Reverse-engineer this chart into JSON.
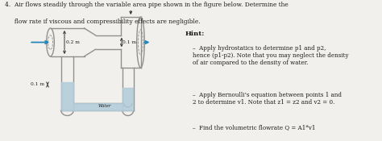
{
  "bg_color": "#f2f0ec",
  "title_line1": "4.  Air flows steadily through the variable area pipe shown in the figure below. Determine the",
  "title_line2": "     flow rate if viscous and compressibility effects are negligible.",
  "hint_title": "Hint:",
  "hint_bullet1": "Apply hydrostatics to determine p1 and p2,\nhence (p1-p2). Note that you may neglect the density\nof air compared to the density of water.",
  "hint_bullet2": "Apply Bernoulli’s equation between points 1 and\n2 to determine v1. Note that z1 = z2 and v2 = 0.",
  "hint_bullet3": "Find the volumetric flowrate Q = A1*v1",
  "label_02m": "0.2 m",
  "label_01m_right": "0.1 m",
  "label_01m_bottom": "0.1 m",
  "label_water": "Water",
  "pipe_color": "#909090",
  "pipe_fill": "#d8d8d8",
  "water_color": "#b0ccd8",
  "arrow_color": "#2288bb",
  "text_color": "#1a1a1a",
  "dim_color": "#333333"
}
